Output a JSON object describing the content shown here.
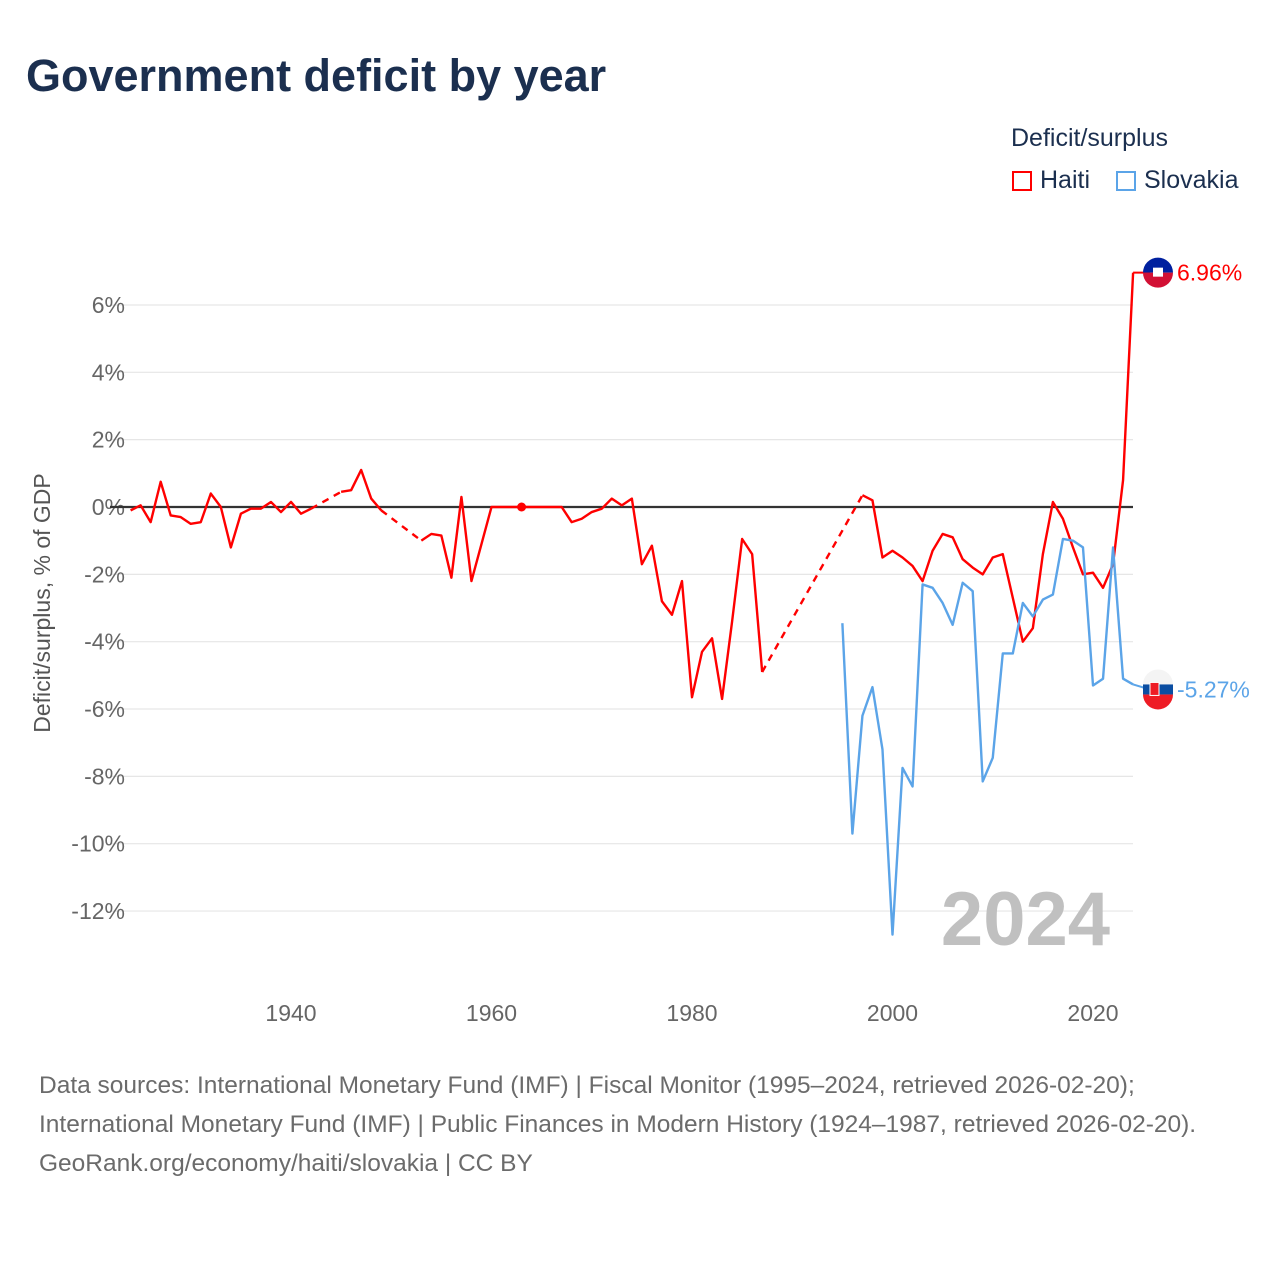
{
  "title": "Government deficit by year",
  "legend": {
    "title": "Deficit/surplus",
    "items": [
      {
        "name": "Haiti",
        "color": "#ff0000"
      },
      {
        "name": "Slovakia",
        "color": "#5ba4e8"
      }
    ]
  },
  "year_watermark": "2024",
  "footer": {
    "sources": "Data sources: International Monetary Fund (IMF) | Fiscal Monitor (1995–2024, retrieved 2026-02-20); International Monetary Fund (IMF) | Public Finances in Modern History (1924–1987, retrieved 2026-02-20).",
    "credit": "GeoRank.org/economy/haiti/slovakia | CC BY"
  },
  "chart_data": {
    "type": "line",
    "title": "Government deficit by year",
    "ylabel": "Deficit/surplus, % of GDP",
    "xlabel": "",
    "xlim": [
      1924,
      2024
    ],
    "ylim": [
      -14,
      7.5
    ],
    "x_ticks": [
      1940,
      1960,
      1980,
      2000,
      2020
    ],
    "y_ticks": [
      6,
      4,
      2,
      0,
      -2,
      -4,
      -6,
      -8,
      -10,
      -12
    ],
    "y_tick_labels": [
      "6%",
      "4%",
      "2%",
      "0%",
      "-2%",
      "-4%",
      "-6%",
      "-8%",
      "-10%",
      "-12%"
    ],
    "grid": true,
    "legend_position": "top-right",
    "series": [
      {
        "name": "Haiti",
        "color": "#ff0000",
        "end_label": "6.96%",
        "points": [
          [
            1924,
            -0.1
          ],
          [
            1925,
            0.05
          ],
          [
            1926,
            -0.45
          ],
          [
            1927,
            0.75
          ],
          [
            1928,
            -0.25
          ],
          [
            1929,
            -0.3
          ],
          [
            1930,
            -0.5
          ],
          [
            1931,
            -0.45
          ],
          [
            1932,
            0.4
          ],
          [
            1933,
            0.0
          ],
          [
            1934,
            -1.2
          ],
          [
            1935,
            -0.2
          ],
          [
            1936,
            -0.05
          ],
          [
            1937,
            -0.05
          ],
          [
            1938,
            0.15
          ],
          [
            1939,
            -0.15
          ],
          [
            1940,
            0.15
          ],
          [
            1941,
            -0.2
          ],
          [
            1942,
            -0.05
          ],
          [
            1943,
            null
          ],
          [
            1944,
            null
          ],
          [
            1945,
            0.45
          ],
          [
            1946,
            0.5
          ],
          [
            1947,
            1.1
          ],
          [
            1948,
            0.25
          ],
          [
            1949,
            -0.1
          ],
          [
            1950,
            null
          ],
          [
            1951,
            null
          ],
          [
            1952,
            null
          ],
          [
            1953,
            -1.0
          ],
          [
            1954,
            -0.8
          ],
          [
            1955,
            -0.85
          ],
          [
            1956,
            -2.1
          ],
          [
            1957,
            0.3
          ],
          [
            1958,
            -2.2
          ],
          [
            1959,
            -1.1
          ],
          [
            1960,
            0.0
          ],
          [
            1961,
            0.0
          ],
          [
            1962,
            0.0
          ],
          [
            1963,
            0.0
          ],
          [
            1964,
            0.0
          ],
          [
            1965,
            0.0
          ],
          [
            1966,
            0.0
          ],
          [
            1967,
            0.0
          ],
          [
            1968,
            -0.45
          ],
          [
            1969,
            -0.35
          ],
          [
            1970,
            -0.15
          ],
          [
            1971,
            -0.05
          ],
          [
            1972,
            0.25
          ],
          [
            1973,
            0.05
          ],
          [
            1974,
            0.25
          ],
          [
            1975,
            -1.7
          ],
          [
            1976,
            -1.15
          ],
          [
            1977,
            -2.8
          ],
          [
            1978,
            -3.2
          ],
          [
            1979,
            -2.2
          ],
          [
            1980,
            -5.65
          ],
          [
            1981,
            -4.3
          ],
          [
            1982,
            -3.9
          ],
          [
            1983,
            -5.7
          ],
          [
            1984,
            -3.4
          ],
          [
            1985,
            -0.95
          ],
          [
            1986,
            -1.4
          ],
          [
            1987,
            -4.9
          ],
          [
            1988,
            null
          ],
          [
            1989,
            null
          ],
          [
            1990,
            null
          ],
          [
            1991,
            null
          ],
          [
            1992,
            null
          ],
          [
            1993,
            null
          ],
          [
            1994,
            null
          ],
          [
            1995,
            null
          ],
          [
            1996,
            null
          ],
          [
            1997,
            0.35
          ],
          [
            1998,
            0.2
          ],
          [
            1999,
            -1.5
          ],
          [
            2000,
            -1.3
          ],
          [
            2001,
            -1.5
          ],
          [
            2002,
            -1.75
          ],
          [
            2003,
            -2.2
          ],
          [
            2004,
            -1.3
          ],
          [
            2005,
            -0.8
          ],
          [
            2006,
            -0.9
          ],
          [
            2007,
            -1.55
          ],
          [
            2008,
            -1.8
          ],
          [
            2009,
            -2.0
          ],
          [
            2010,
            -1.5
          ],
          [
            2011,
            -1.4
          ],
          [
            2012,
            -2.7
          ],
          [
            2013,
            -4.0
          ],
          [
            2014,
            -3.6
          ],
          [
            2015,
            -1.4
          ],
          [
            2016,
            0.15
          ],
          [
            2017,
            -0.35
          ],
          [
            2018,
            -1.2
          ],
          [
            2019,
            -2.0
          ],
          [
            2020,
            -1.95
          ],
          [
            2021,
            -2.4
          ],
          [
            2022,
            -1.7
          ],
          [
            2023,
            0.8
          ],
          [
            2024,
            6.96
          ]
        ]
      },
      {
        "name": "Slovakia",
        "color": "#5ba4e8",
        "end_label": "-5.27%",
        "points": [
          [
            1995,
            -3.45
          ],
          [
            1996,
            -9.7
          ],
          [
            1997,
            -6.2
          ],
          [
            1998,
            -5.35
          ],
          [
            1999,
            -7.2
          ],
          [
            2000,
            -12.7
          ],
          [
            2001,
            -7.75
          ],
          [
            2002,
            -8.3
          ],
          [
            2003,
            -2.3
          ],
          [
            2004,
            -2.4
          ],
          [
            2005,
            -2.85
          ],
          [
            2006,
            -3.5
          ],
          [
            2007,
            -2.25
          ],
          [
            2008,
            -2.5
          ],
          [
            2009,
            -8.15
          ],
          [
            2010,
            -7.45
          ],
          [
            2011,
            -4.35
          ],
          [
            2012,
            -4.35
          ],
          [
            2013,
            -2.85
          ],
          [
            2014,
            -3.25
          ],
          [
            2015,
            -2.75
          ],
          [
            2016,
            -2.6
          ],
          [
            2017,
            -0.95
          ],
          [
            2018,
            -1.0
          ],
          [
            2019,
            -1.2
          ],
          [
            2020,
            -5.3
          ],
          [
            2021,
            -5.1
          ],
          [
            2022,
            -1.2
          ],
          [
            2023,
            -5.1
          ],
          [
            2024,
            -5.27
          ]
        ]
      }
    ]
  }
}
